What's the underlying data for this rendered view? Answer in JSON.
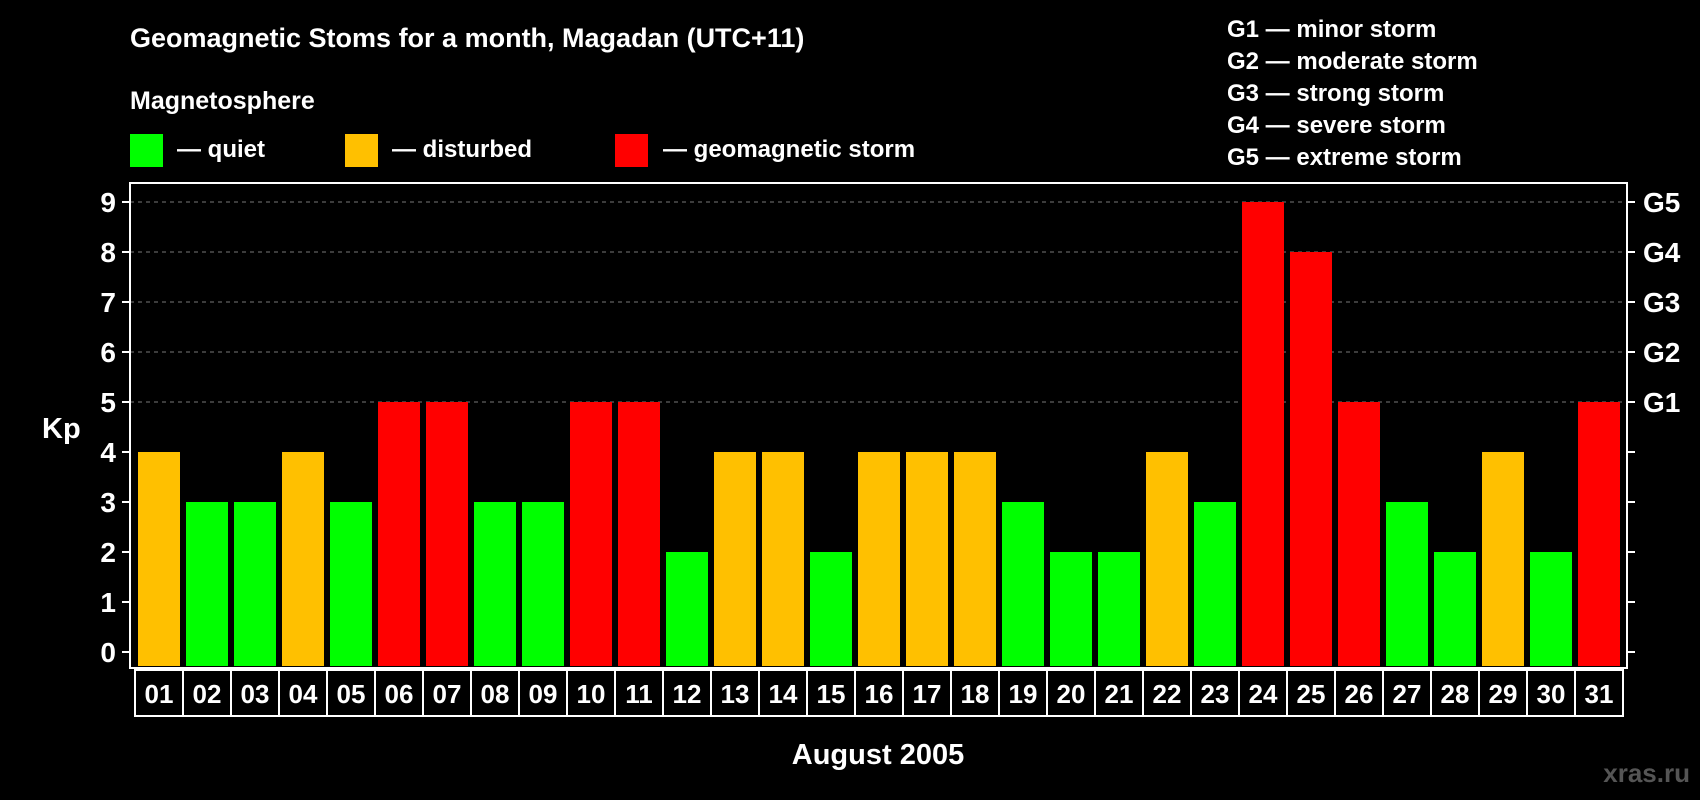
{
  "title": "Geomagnetic Stoms for a month, Magadan (UTC+11)",
  "magnetosphere_label": "Magnetosphere",
  "legend": [
    {
      "label": "— quiet",
      "color": "#00ff00"
    },
    {
      "label": "— disturbed",
      "color": "#ffc000"
    },
    {
      "label": "— geomagnetic storm",
      "color": "#ff0000"
    }
  ],
  "storm_scale": [
    "G1 — minor storm",
    "G2 — moderate storm",
    "G3 — strong storm",
    "G4 — severe storm",
    "G5 — extreme storm"
  ],
  "watermark": "xras.ru",
  "chart_data": {
    "type": "bar",
    "title": "Geomagnetic Stoms for a month, Magadan (UTC+11)",
    "xlabel": "August 2005",
    "ylabel": "Kp",
    "ylim": [
      0,
      9
    ],
    "yticks": [
      "0",
      "1",
      "2",
      "3",
      "4",
      "5",
      "6",
      "7",
      "8",
      "9"
    ],
    "right_axis_labels": [
      {
        "value": 5,
        "label": "G1"
      },
      {
        "value": 6,
        "label": "G2"
      },
      {
        "value": 7,
        "label": "G3"
      },
      {
        "value": 8,
        "label": "G4"
      },
      {
        "value": 9,
        "label": "G5"
      }
    ],
    "grid": "dashed horizontal at 5-9",
    "categories": [
      "01",
      "02",
      "03",
      "04",
      "05",
      "06",
      "07",
      "08",
      "09",
      "10",
      "11",
      "12",
      "13",
      "14",
      "15",
      "16",
      "17",
      "18",
      "19",
      "20",
      "21",
      "22",
      "23",
      "24",
      "25",
      "26",
      "27",
      "28",
      "29",
      "30",
      "31"
    ],
    "values": [
      4,
      3,
      3,
      4,
      3,
      5,
      5,
      3,
      3,
      5,
      5,
      2,
      4,
      4,
      2,
      4,
      4,
      4,
      3,
      2,
      2,
      4,
      3,
      9,
      8,
      5,
      3,
      2,
      4,
      2,
      5
    ],
    "colors": {
      "quiet": "#00ff00",
      "disturbed": "#ffc000",
      "storm": "#ff0000"
    }
  }
}
